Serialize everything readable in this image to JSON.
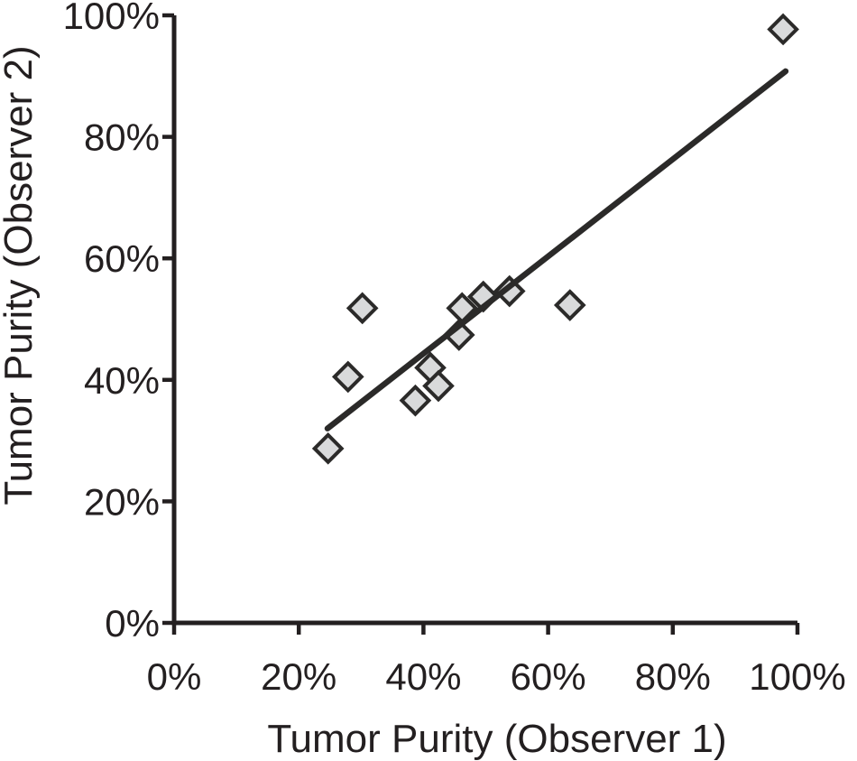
{
  "chart_data": {
    "type": "scatter",
    "title": "",
    "xlabel": "Tumor Purity (Observer 1)",
    "ylabel": "Tumor Purity (Observer 2)",
    "xlim": [
      0,
      100
    ],
    "ylim": [
      0,
      100
    ],
    "x_tick_values": [
      0,
      20,
      40,
      60,
      80,
      100
    ],
    "x_tick_labels": [
      "0%",
      "20%",
      "40%",
      "60%",
      "80%",
      "100%"
    ],
    "y_tick_values": [
      0,
      20,
      40,
      60,
      80,
      100
    ],
    "y_tick_labels": [
      "0%",
      "20%",
      "40%",
      "60%",
      "80%",
      "100%"
    ],
    "grid": false,
    "legend_position": "none",
    "points": [
      {
        "x": 24.7,
        "y": 28.7
      },
      {
        "x": 27.9,
        "y": 40.5
      },
      {
        "x": 30.2,
        "y": 51.8
      },
      {
        "x": 38.7,
        "y": 36.6
      },
      {
        "x": 41.1,
        "y": 42.0
      },
      {
        "x": 42.4,
        "y": 39.0
      },
      {
        "x": 45.7,
        "y": 47.4
      },
      {
        "x": 46.2,
        "y": 51.8
      },
      {
        "x": 49.6,
        "y": 53.7
      },
      {
        "x": 53.8,
        "y": 54.6
      },
      {
        "x": 63.5,
        "y": 52.3
      },
      {
        "x": 97.7,
        "y": 97.7
      }
    ],
    "trendline": {
      "x1": 24.6,
      "y1": 32.0,
      "x2": 98.1,
      "y2": 90.8
    },
    "marker": {
      "shape": "diamond",
      "fill": "#d9dadb",
      "stroke": "#2b2a29"
    },
    "colors": {
      "axis": "#231f20",
      "text": "#231f20",
      "trendline": "#2b2a29"
    }
  }
}
